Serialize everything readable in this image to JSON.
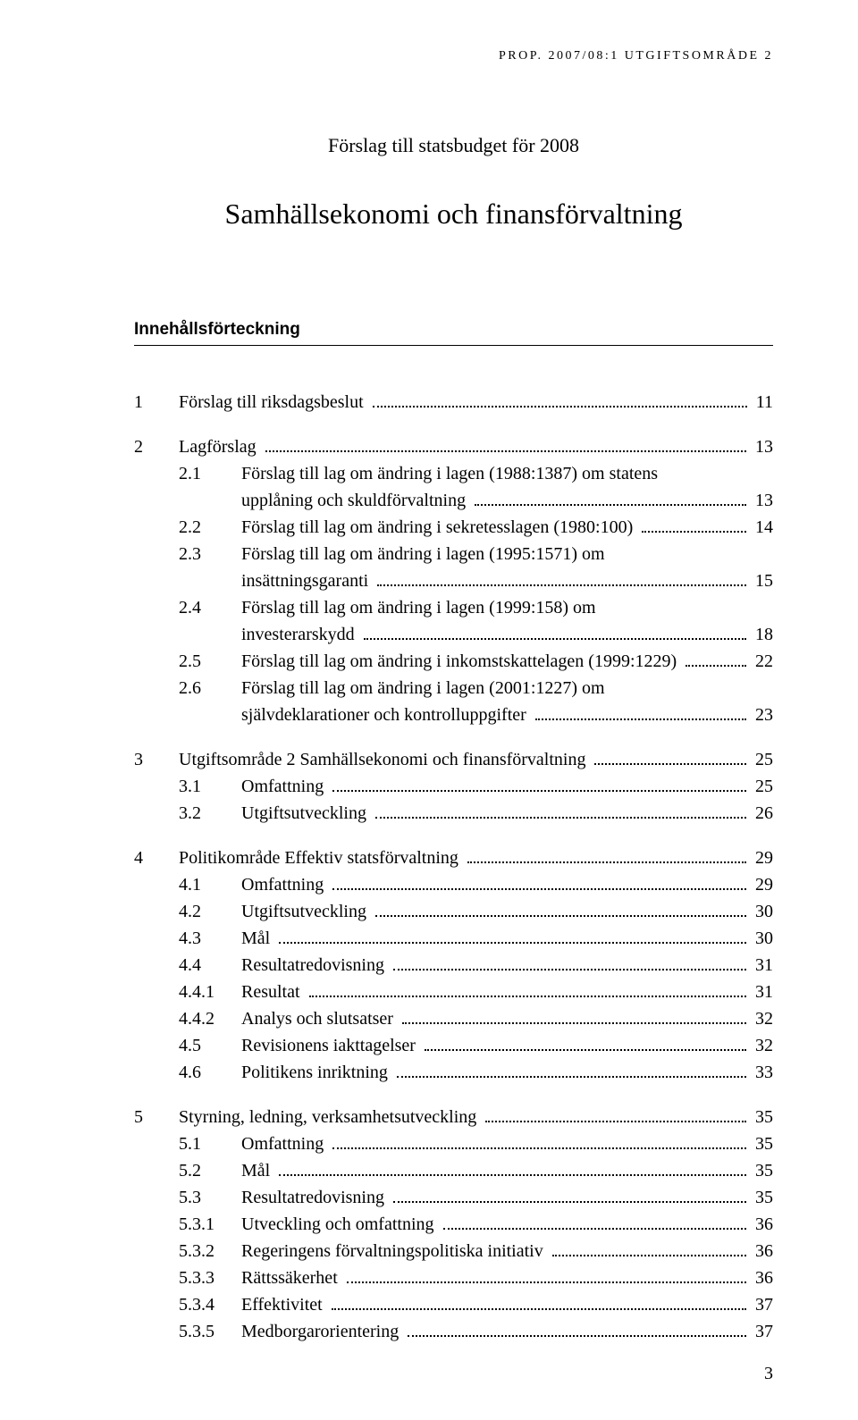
{
  "running_head": "PROP. 2007/08:1 UTGIFTSOMRÅDE 2",
  "pretitle": "Förslag till statsbudget för 2008",
  "title": "Samhällsekonomi och finansförvaltning",
  "section_label": "Innehållsförteckning",
  "page_number": "3",
  "toc": [
    {
      "num": "1",
      "text": "Förslag till riksdagsbeslut",
      "page": "11",
      "children": []
    },
    {
      "num": "2",
      "text": "Lagförslag",
      "page": "13",
      "children": [
        {
          "num": "2.1",
          "lines": [
            "Förslag till lag om ändring i lagen (1988:1387) om statens",
            "upplåning och skuldförvaltning"
          ],
          "page": "13"
        },
        {
          "num": "2.2",
          "lines": [
            "Förslag till lag om ändring i sekretesslagen (1980:100)"
          ],
          "page": "14"
        },
        {
          "num": "2.3",
          "lines": [
            "Förslag till lag om ändring i lagen (1995:1571) om",
            "insättningsgaranti"
          ],
          "page": "15"
        },
        {
          "num": "2.4",
          "lines": [
            "Förslag till lag om ändring i lagen (1999:158) om",
            "investerarskydd"
          ],
          "page": "18"
        },
        {
          "num": "2.5",
          "lines": [
            "Förslag till lag om ändring i inkomstskattelagen (1999:1229)"
          ],
          "page": "22"
        },
        {
          "num": "2.6",
          "lines": [
            "Förslag till lag om ändring i lagen (2001:1227) om",
            "självdeklarationer och kontrolluppgifter"
          ],
          "page": "23"
        }
      ]
    },
    {
      "num": "3",
      "text": "Utgiftsområde 2 Samhällsekonomi och finansförvaltning",
      "page": "25",
      "children": [
        {
          "num": "3.1",
          "lines": [
            "Omfattning"
          ],
          "page": "25"
        },
        {
          "num": "3.2",
          "lines": [
            "Utgiftsutveckling"
          ],
          "page": "26"
        }
      ]
    },
    {
      "num": "4",
      "text": "Politikområde Effektiv statsförvaltning",
      "page": "29",
      "children": [
        {
          "num": "4.1",
          "lines": [
            "Omfattning"
          ],
          "page": "29"
        },
        {
          "num": "4.2",
          "lines": [
            "Utgiftsutveckling"
          ],
          "page": "30"
        },
        {
          "num": "4.3",
          "lines": [
            "Mål"
          ],
          "page": "30"
        },
        {
          "num": "4.4",
          "lines": [
            "Resultatredovisning"
          ],
          "page": "31"
        },
        {
          "num": "4.4.1",
          "lines": [
            "Resultat"
          ],
          "page": "31"
        },
        {
          "num": "4.4.2",
          "lines": [
            "Analys och slutsatser"
          ],
          "page": "32"
        },
        {
          "num": "4.5",
          "lines": [
            "Revisionens iakttagelser"
          ],
          "page": "32"
        },
        {
          "num": "4.6",
          "lines": [
            "Politikens inriktning"
          ],
          "page": "33"
        }
      ]
    },
    {
      "num": "5",
      "text": "Styrning, ledning, verksamhetsutveckling",
      "page": "35",
      "children": [
        {
          "num": "5.1",
          "lines": [
            "Omfattning"
          ],
          "page": "35"
        },
        {
          "num": "5.2",
          "lines": [
            "Mål"
          ],
          "page": "35"
        },
        {
          "num": "5.3",
          "lines": [
            "Resultatredovisning"
          ],
          "page": "35"
        },
        {
          "num": "5.3.1",
          "lines": [
            "Utveckling och omfattning"
          ],
          "page": "36"
        },
        {
          "num": "5.3.2",
          "lines": [
            "Regeringens förvaltningspolitiska initiativ"
          ],
          "page": "36"
        },
        {
          "num": "5.3.3",
          "lines": [
            "Rättssäkerhet"
          ],
          "page": "36"
        },
        {
          "num": "5.3.4",
          "lines": [
            "Effektivitet"
          ],
          "page": "37"
        },
        {
          "num": "5.3.5",
          "lines": [
            "Medborgarorientering"
          ],
          "page": "37"
        }
      ]
    }
  ]
}
